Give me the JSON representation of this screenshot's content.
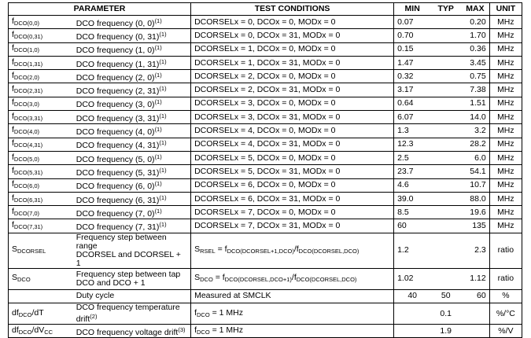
{
  "headers": {
    "parameter": "PARAMETER",
    "conditions": "TEST CONDITIONS",
    "min": "MIN",
    "typ": "TYP",
    "max": "MAX",
    "unit": "UNIT"
  },
  "rows": [
    {
      "sym": "f",
      "sub": "DCO(0,0)",
      "param": "DCO frequency (0, 0)",
      "note": "(1)",
      "cond": "DCORSELx = 0, DCOx = 0, MODx = 0",
      "min": "0.07",
      "typ": "",
      "max": "0.20",
      "unit": "MHz"
    },
    {
      "sym": "f",
      "sub": "DCO(0,31)",
      "param": "DCO frequency (0, 31)",
      "note": "(1)",
      "cond": "DCORSELx = 0, DCOx = 31, MODx = 0",
      "min": "0.70",
      "typ": "",
      "max": "1.70",
      "unit": "MHz"
    },
    {
      "sym": "f",
      "sub": "DCO(1,0)",
      "param": "DCO frequency (1, 0)",
      "note": "(1)",
      "cond": "DCORSELx = 1, DCOx = 0, MODx = 0",
      "min": "0.15",
      "typ": "",
      "max": "0.36",
      "unit": "MHz"
    },
    {
      "sym": "f",
      "sub": "DCO(1,31)",
      "param": "DCO frequency (1, 31)",
      "note": "(1)",
      "cond": "DCORSELx = 1, DCOx = 31, MODx = 0",
      "min": "1.47",
      "typ": "",
      "max": "3.45",
      "unit": "MHz"
    },
    {
      "sym": "f",
      "sub": "DCO(2,0)",
      "param": "DCO frequency (2, 0)",
      "note": "(1)",
      "cond": "DCORSELx = 2, DCOx = 0, MODx = 0",
      "min": "0.32",
      "typ": "",
      "max": "0.75",
      "unit": "MHz"
    },
    {
      "sym": "f",
      "sub": "DCO(2,31)",
      "param": "DCO frequency (2, 31)",
      "note": "(1)",
      "cond": "DCORSELx = 2, DCOx = 31, MODx = 0",
      "min": "3.17",
      "typ": "",
      "max": "7.38",
      "unit": "MHz"
    },
    {
      "sym": "f",
      "sub": "DCO(3,0)",
      "param": "DCO frequency (3, 0)",
      "note": "(1)",
      "cond": "DCORSELx = 3, DCOx = 0, MODx = 0",
      "min": "0.64",
      "typ": "",
      "max": "1.51",
      "unit": "MHz"
    },
    {
      "sym": "f",
      "sub": "DCO(3,31)",
      "param": "DCO frequency (3, 31)",
      "note": "(1)",
      "cond": "DCORSELx = 3, DCOx = 31, MODx = 0",
      "min": "6.07",
      "typ": "",
      "max": "14.0",
      "unit": "MHz"
    },
    {
      "sym": "f",
      "sub": "DCO(4,0)",
      "param": "DCO frequency (4, 0)",
      "note": "(1)",
      "cond": "DCORSELx = 4, DCOx = 0, MODx = 0",
      "min": "1.3",
      "typ": "",
      "max": "3.2",
      "unit": "MHz"
    },
    {
      "sym": "f",
      "sub": "DCO(4,31)",
      "param": "DCO frequency (4, 31)",
      "note": "(1)",
      "cond": "DCORSELx = 4, DCOx = 31, MODx = 0",
      "min": "12.3",
      "typ": "",
      "max": "28.2",
      "unit": "MHz"
    },
    {
      "sym": "f",
      "sub": "DCO(5,0)",
      "param": "DCO frequency (5, 0)",
      "note": "(1)",
      "cond": "DCORSELx = 5, DCOx = 0, MODx = 0",
      "min": "2.5",
      "typ": "",
      "max": "6.0",
      "unit": "MHz"
    },
    {
      "sym": "f",
      "sub": "DCO(5,31)",
      "param": "DCO frequency (5, 31)",
      "note": "(1)",
      "cond": "DCORSELx = 5, DCOx = 31, MODx = 0",
      "min": "23.7",
      "typ": "",
      "max": "54.1",
      "unit": "MHz"
    },
    {
      "sym": "f",
      "sub": "DCO(6,0)",
      "param": "DCO frequency (6, 0)",
      "note": "(1)",
      "cond": "DCORSELx = 6, DCOx = 0, MODx = 0",
      "min": "4.6",
      "typ": "",
      "max": "10.7",
      "unit": "MHz"
    },
    {
      "sym": "f",
      "sub": "DCO(6,31)",
      "param": "DCO frequency (6, 31)",
      "note": "(1)",
      "cond": "DCORSELx = 6, DCOx = 31, MODx = 0",
      "min": "39.0",
      "typ": "",
      "max": "88.0",
      "unit": "MHz"
    },
    {
      "sym": "f",
      "sub": "DCO(7,0)",
      "param": "DCO frequency (7, 0)",
      "note": "(1)",
      "cond": "DCORSELx = 7, DCOx = 0, MODx = 0",
      "min": "8.5",
      "typ": "",
      "max": "19.6",
      "unit": "MHz"
    },
    {
      "sym": "f",
      "sub": "DCO(7,31)",
      "param": "DCO frequency (7, 31)",
      "note": "(1)",
      "cond": "DCORSELx = 7, DCOx = 31, MODx = 0",
      "min": "60",
      "typ": "",
      "max": "135",
      "unit": "MHz"
    }
  ],
  "extra": {
    "sdcorsel": {
      "sym": "S",
      "sub": "DCORSEL",
      "param1": "Frequency step between range",
      "param2": "DCORSEL and DCORSEL + 1",
      "c1": "S",
      "c1sub": "RSEL",
      "c2": " = f",
      "c2sub": "DCO(DCORSEL+1,DCO)",
      "c3": "/f",
      "c3sub": "DCO(DCORSEL,DCO)",
      "min": "1.2",
      "max": "2.3",
      "unit": "ratio"
    },
    "sdco": {
      "sym": "S",
      "sub": "DCO",
      "param1": "Frequency step between tap",
      "param2": "DCO and DCO + 1",
      "c1": "S",
      "c1sub": "DCO",
      "c2": " = f",
      "c2sub": "DCO(DCORSEL,DCO+1)",
      "c3": "/f",
      "c3sub": "DCO(DCORSEL,DCO)",
      "min": "1.02",
      "max": "1.12",
      "unit": "ratio"
    },
    "duty": {
      "param": "Duty cycle",
      "cond": "Measured at SMCLK",
      "min": "40",
      "typ": "50",
      "max": "60",
      "unit": "%"
    },
    "temp": {
      "sym": "df",
      "sub": "DCO",
      "sym2": "/dT",
      "param1": "DCO frequency temperature",
      "param2": "drift",
      "note": "(2)",
      "c1": "f",
      "c1sub": "DCO",
      "c2": " = 1 MHz",
      "typ": "0.1",
      "unit": "%/°C"
    },
    "volt": {
      "sym": "df",
      "sub": "DCO",
      "sym2": "/dV",
      "sub2": "CC",
      "param": "DCO frequency voltage drift",
      "note": "(3)",
      "c1": "f",
      "c1sub": "DCO",
      "c2": " = 1 MHz",
      "typ": "1.9",
      "unit": "%/V"
    }
  }
}
